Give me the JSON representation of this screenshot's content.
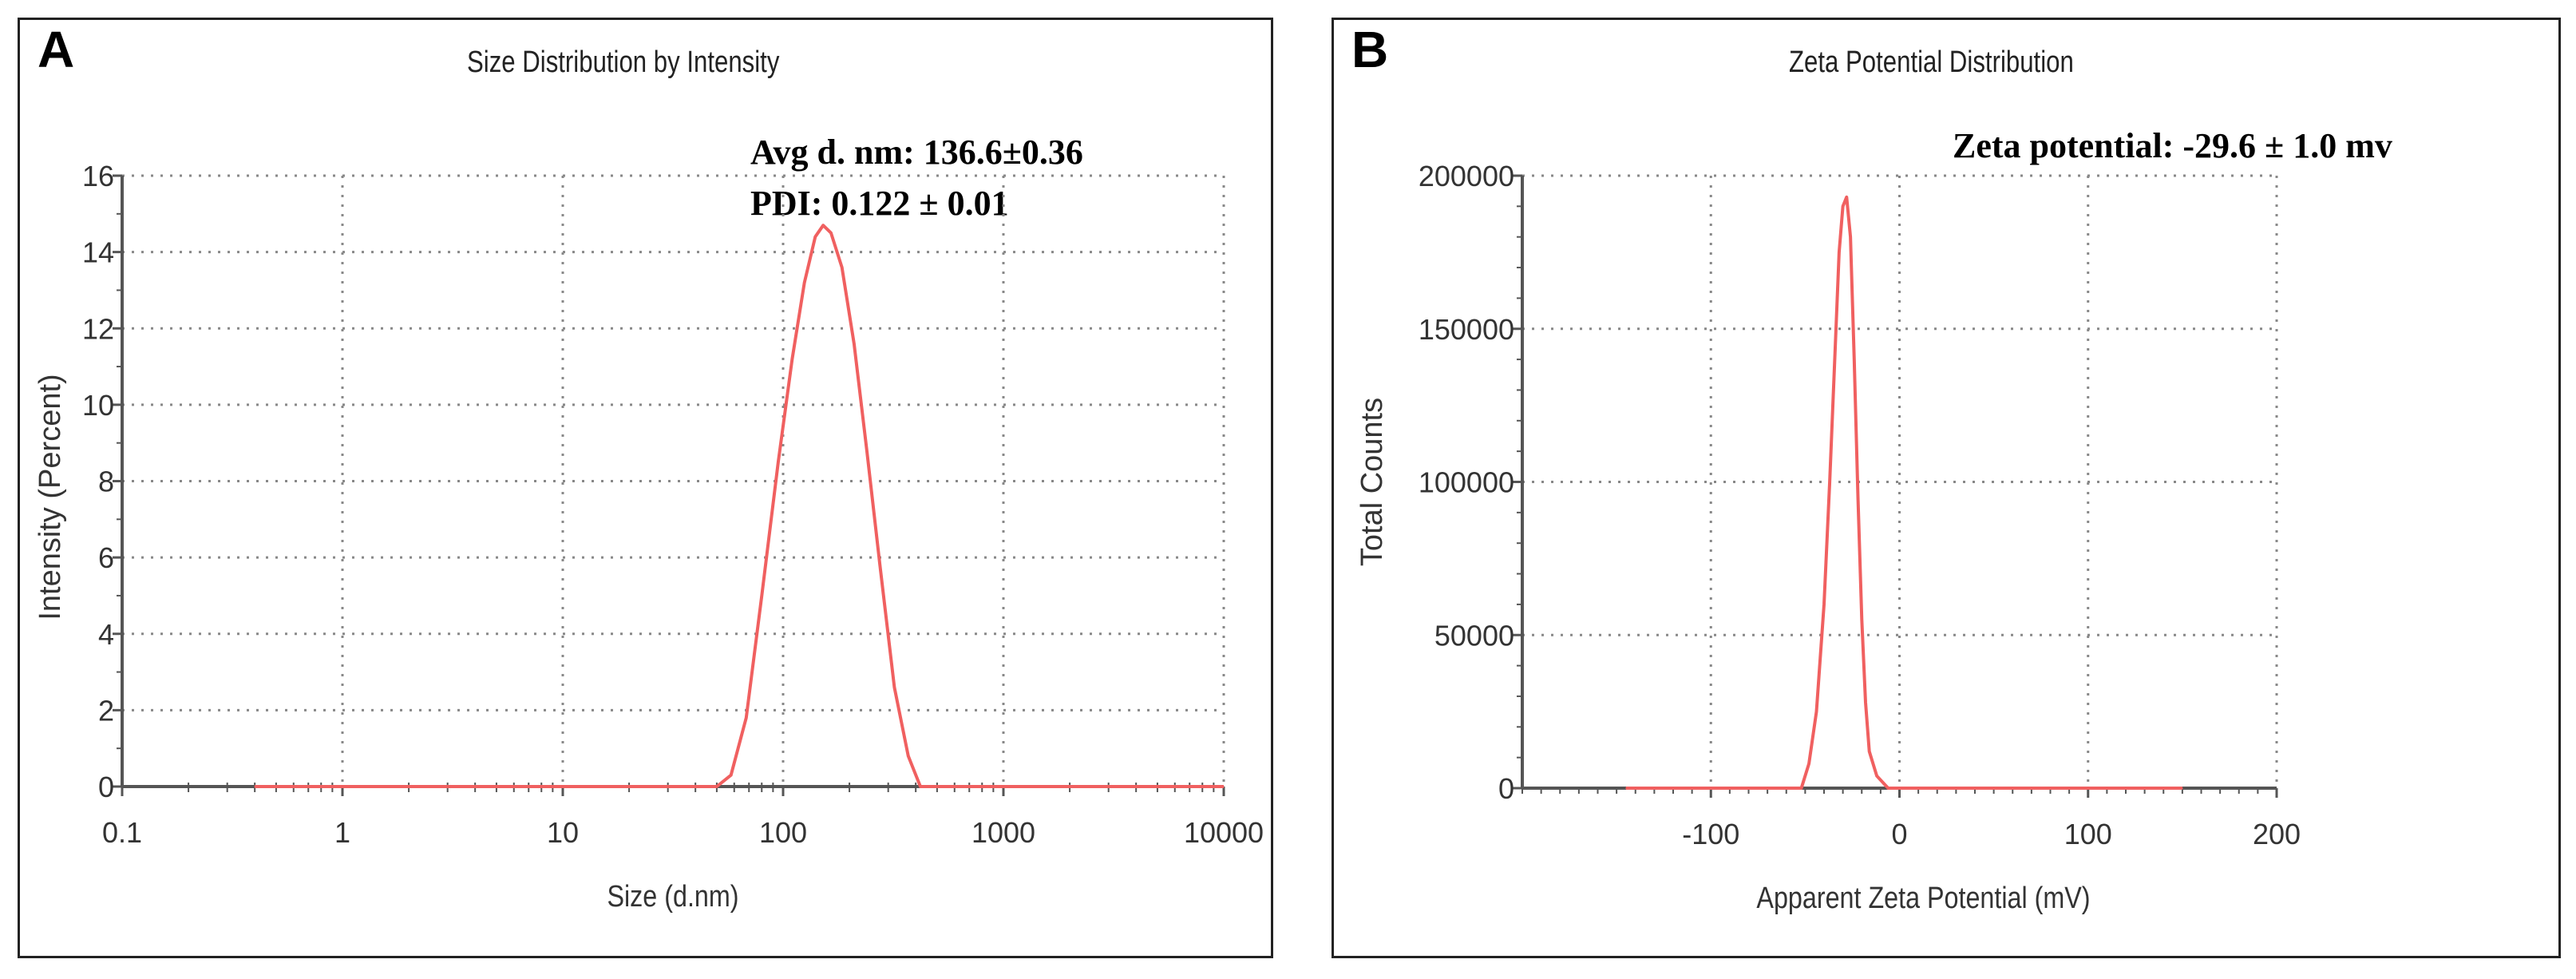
{
  "panels": {
    "a": {
      "letter": "A",
      "annotation_line1": "Avg d. nm: 136.6±0.36",
      "annotation_line2": "PDI: 0.122 ± 0.01"
    },
    "b": {
      "letter": "B",
      "annotation": "Zeta potential: -29.6 ± 1.0 mv"
    }
  },
  "colors": {
    "curve": "#f06060",
    "axis": "#555555",
    "grid": "#888888",
    "panel_border": "#222222"
  },
  "chart_data": [
    {
      "type": "line",
      "title": "Size Distribution by Intensity",
      "xlabel": "Size (d.nm)",
      "ylabel": "Intensity (Percent)",
      "xscale": "log",
      "xlim": [
        0.1,
        10000
      ],
      "ylim": [
        0,
        16
      ],
      "xticks": [
        0.1,
        1,
        10,
        100,
        1000,
        10000
      ],
      "xtick_labels": [
        "0.1",
        "1",
        "10",
        "100",
        "1000",
        "10000"
      ],
      "yticks": [
        0,
        2,
        4,
        6,
        8,
        10,
        12,
        14,
        16
      ],
      "ytick_labels": [
        "0",
        "2",
        "4",
        "6",
        "8",
        "10",
        "12",
        "14",
        "16"
      ],
      "grid": true,
      "series": [
        {
          "name": "Intensity",
          "x": [
            0.4,
            50,
            58,
            68,
            80,
            95,
            110,
            125,
            140,
            152,
            165,
            185,
            210,
            240,
            275,
            320,
            370,
            420,
            10000
          ],
          "y": [
            0,
            0,
            0.3,
            1.8,
            5.0,
            8.5,
            11.2,
            13.2,
            14.4,
            14.7,
            14.5,
            13.6,
            11.6,
            8.8,
            5.8,
            2.6,
            0.8,
            0,
            0
          ]
        }
      ]
    },
    {
      "type": "line",
      "title": "Zeta Potential Distribution",
      "xlabel": "Apparent Zeta Potential (mV)",
      "ylabel": "Total Counts",
      "xscale": "linear",
      "xlim": [
        -200,
        200
      ],
      "ylim": [
        0,
        200000
      ],
      "xticks": [
        -100,
        0,
        100,
        200
      ],
      "xtick_labels": [
        "-100",
        "0",
        "100",
        "200"
      ],
      "yticks": [
        0,
        50000,
        100000,
        150000,
        200000
      ],
      "ytick_labels": [
        "0",
        "50000",
        "100000",
        "150000",
        "200000"
      ],
      "grid": true,
      "series": [
        {
          "name": "Total Counts",
          "x": [
            -145,
            -52,
            -48,
            -44,
            -40,
            -37,
            -34,
            -32,
            -30,
            -28,
            -26,
            -24,
            -22,
            -20,
            -18,
            -16,
            -12,
            -6,
            150
          ],
          "y": [
            0,
            0,
            8000,
            25000,
            60000,
            100000,
            145000,
            175000,
            190000,
            193000,
            180000,
            140000,
            95000,
            55000,
            28000,
            12000,
            4000,
            0,
            0
          ]
        }
      ]
    }
  ]
}
